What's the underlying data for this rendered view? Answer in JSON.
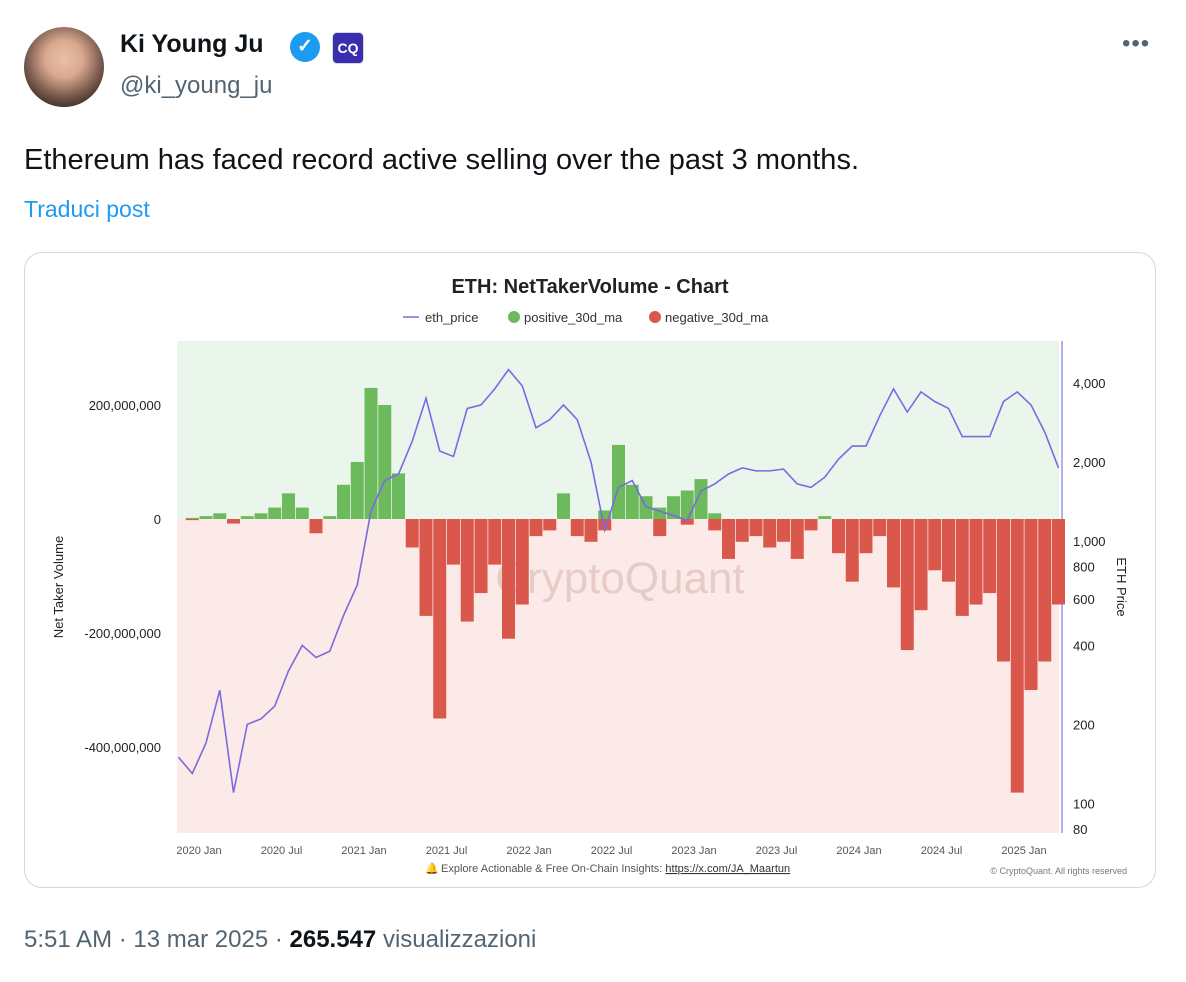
{
  "tweet": {
    "author_name": "Ki Young Ju",
    "handle": "@ki_young_ju",
    "verified_icon": "verified-badge-icon",
    "org_badge": "CQ",
    "more_icon": "•••",
    "text": "Ethereum has faced record active selling over the past 3 months.",
    "translate_label": "Traduci post",
    "time": "5:51 AM",
    "date": "13 mar 2025",
    "views_count": "265.547",
    "views_label": "visualizzazioni",
    "separator": "·"
  },
  "colors": {
    "accent": "#1d9bf0",
    "price": "#7b6ae0",
    "positive": "#6cba5c",
    "negative": "#d9584b",
    "pos_bg": "#eaf6ec",
    "neg_bg": "#fbeae8"
  },
  "chart_data": {
    "type": "bar",
    "title": "ETH: NetTakerVolume - Chart",
    "legend": [
      "eth_price",
      "positive_30d_ma",
      "negative_30d_ma"
    ],
    "ylabel": "Net Taker Volume",
    "y2label": "ETH Price",
    "y_ticks": [
      {
        "v": 200000000,
        "label": "200,000,000"
      },
      {
        "v": 0,
        "label": "0"
      },
      {
        "v": -200000000,
        "label": "-200,000,000"
      },
      {
        "v": -400000000,
        "label": "-400,000,000"
      }
    ],
    "y2_ticks": [
      {
        "v": 4000,
        "label": "4,000"
      },
      {
        "v": 2000,
        "label": "2,000"
      },
      {
        "v": 1000,
        "label": "1,000"
      },
      {
        "v": 800,
        "label": "800"
      },
      {
        "v": 600,
        "label": "600"
      },
      {
        "v": 400,
        "label": "400"
      },
      {
        "v": 200,
        "label": "200"
      },
      {
        "v": 100,
        "label": "100"
      },
      {
        "v": 80,
        "label": "80"
      }
    ],
    "y2_scale": "log",
    "x_ticks": [
      "2020 Jan",
      "2020 Jul",
      "2021 Jan",
      "2021 Jul",
      "2022 Jan",
      "2022 Jul",
      "2023 Jan",
      "2023 Jul",
      "2024 Jan",
      "2024 Jul",
      "2025 Jan"
    ],
    "ylim": [
      -540000000,
      300000000
    ],
    "y2lim": [
      80,
      5200
    ],
    "watermark": "CryptoQuant",
    "footer": "Explore Actionable & Free On-Chain Insights: ",
    "footer_link": "https://x.com/JA_Maartun",
    "copyright": "© CryptoQuant. All rights reserved",
    "dates": [
      "2019-11",
      "2019-12",
      "2020-01",
      "2020-02",
      "2020-03",
      "2020-04",
      "2020-05",
      "2020-06",
      "2020-07",
      "2020-08",
      "2020-09",
      "2020-10",
      "2020-11",
      "2020-12",
      "2021-01",
      "2021-02",
      "2021-03",
      "2021-04",
      "2021-05",
      "2021-06",
      "2021-07",
      "2021-08",
      "2021-09",
      "2021-10",
      "2021-11",
      "2021-12",
      "2022-01",
      "2022-02",
      "2022-03",
      "2022-04",
      "2022-05",
      "2022-06",
      "2022-07",
      "2022-08",
      "2022-09",
      "2022-10",
      "2022-11",
      "2022-12",
      "2023-01",
      "2023-02",
      "2023-03",
      "2023-04",
      "2023-05",
      "2023-06",
      "2023-07",
      "2023-08",
      "2023-09",
      "2023-10",
      "2023-11",
      "2023-12",
      "2024-01",
      "2024-02",
      "2024-03",
      "2024-04",
      "2024-05",
      "2024-06",
      "2024-07",
      "2024-08",
      "2024-09",
      "2024-10",
      "2024-11",
      "2024-12",
      "2025-01",
      "2025-02",
      "2025-03"
    ],
    "series": [
      {
        "name": "eth_price",
        "values": [
          150,
          130,
          170,
          270,
          110,
          200,
          210,
          235,
          320,
          400,
          360,
          380,
          520,
          680,
          1300,
          1700,
          1800,
          2400,
          3500,
          2200,
          2100,
          3200,
          3300,
          3800,
          4500,
          3900,
          2700,
          2900,
          3300,
          2900,
          2000,
          1100,
          1600,
          1700,
          1350,
          1300,
          1250,
          1200,
          1550,
          1650,
          1800,
          1900,
          1850,
          1850,
          1880,
          1650,
          1600,
          1750,
          2050,
          2300,
          2300,
          3000,
          3800,
          3100,
          3700,
          3400,
          3200,
          2500,
          2500,
          2500,
          3400,
          3700,
          3300,
          2600,
          1900
        ]
      },
      {
        "name": "positive_30d_ma",
        "values": [
          0,
          2000000,
          5000000,
          10000000,
          0,
          5000000,
          10000000,
          20000000,
          45000000,
          20000000,
          0,
          5000000,
          60000000,
          100000000,
          230000000,
          200000000,
          80000000,
          0,
          0,
          0,
          0,
          0,
          0,
          0,
          0,
          0,
          0,
          0,
          45000000,
          0,
          0,
          15000000,
          130000000,
          60000000,
          40000000,
          20000000,
          40000000,
          50000000,
          70000000,
          10000000,
          0,
          0,
          0,
          0,
          0,
          0,
          0,
          5000000,
          0,
          0,
          0,
          0,
          0,
          0,
          0,
          0,
          0,
          0,
          0,
          0,
          0,
          0,
          0,
          0,
          0
        ]
      },
      {
        "name": "negative_30d_ma",
        "values": [
          0,
          -2000000,
          0,
          0,
          -8000000,
          0,
          0,
          0,
          0,
          0,
          -25000000,
          0,
          0,
          0,
          0,
          0,
          0,
          -50000000,
          -170000000,
          -350000000,
          -80000000,
          -180000000,
          -130000000,
          -80000000,
          -210000000,
          -150000000,
          -30000000,
          -20000000,
          0,
          -30000000,
          -40000000,
          -20000000,
          0,
          0,
          0,
          -30000000,
          0,
          -10000000,
          0,
          -20000000,
          -70000000,
          -40000000,
          -30000000,
          -50000000,
          -40000000,
          -70000000,
          -20000000,
          0,
          -60000000,
          -110000000,
          -60000000,
          -30000000,
          -120000000,
          -230000000,
          -160000000,
          -90000000,
          -110000000,
          -170000000,
          -150000000,
          -130000000,
          -250000000,
          -480000000,
          -300000000,
          -250000000,
          -150000000
        ]
      }
    ]
  }
}
